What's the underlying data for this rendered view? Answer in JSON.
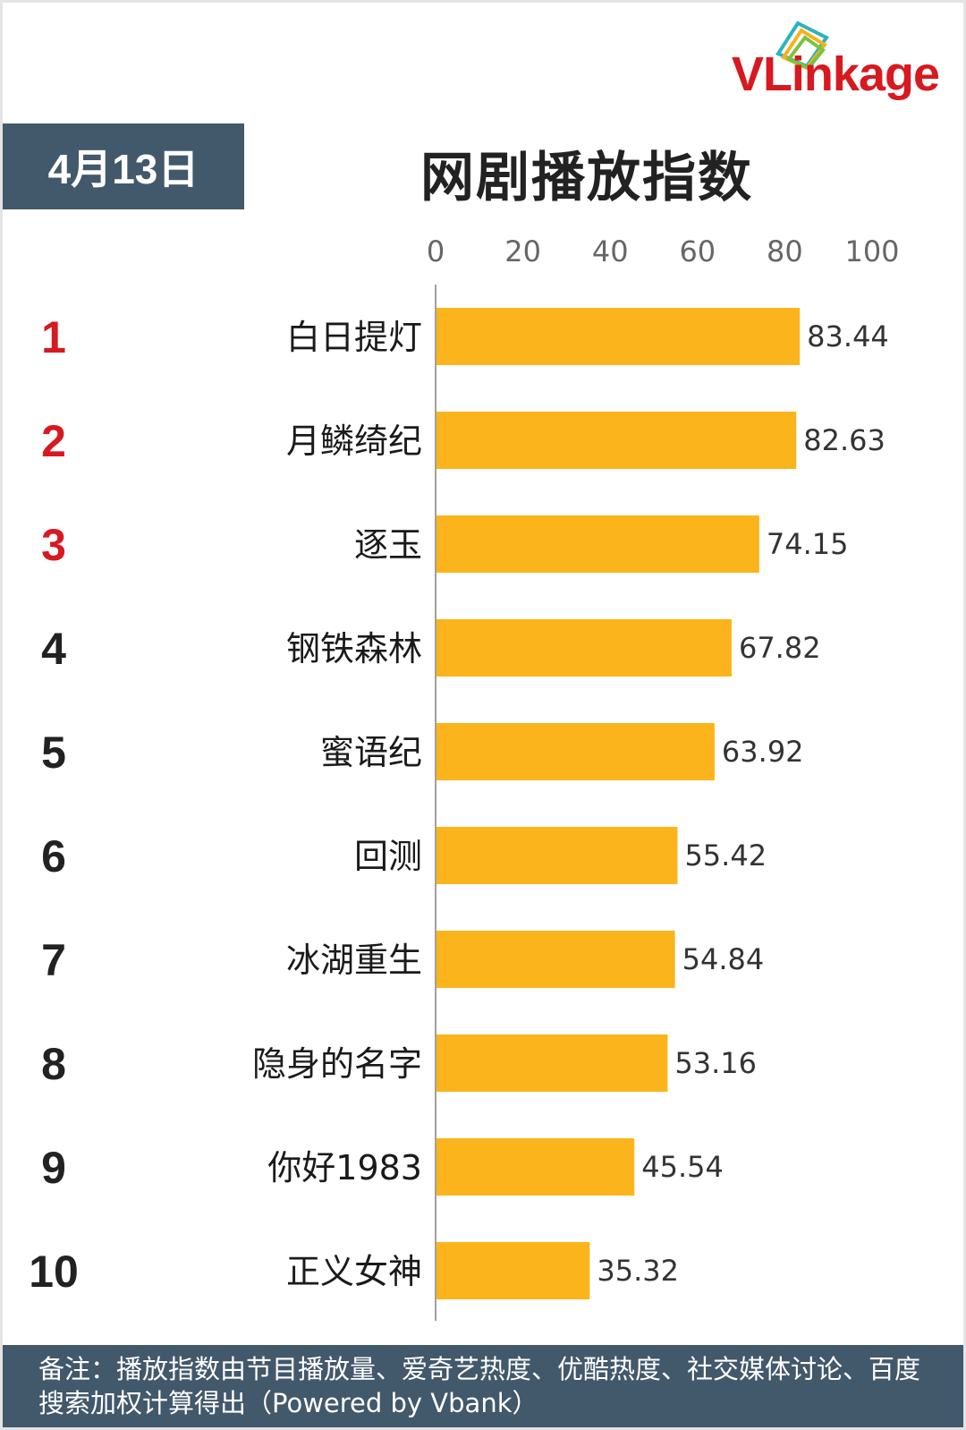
{
  "brand": {
    "logo_text": "VLinkage"
  },
  "date_badge": "4月13日",
  "footnote": "备注：播放指数由节目播放量、爱奇艺热度、优酷热度、社交媒体讨论、百度搜索加权计算得出（Powered by Vbank）",
  "colors": {
    "bar": "#fbb41b",
    "header_bg": "#42586b",
    "rank_top": "#d71920",
    "rank_other": "#222222"
  },
  "chart_data": {
    "type": "bar",
    "orientation": "horizontal",
    "title": "网剧播放指数",
    "xlim": [
      0,
      100
    ],
    "ticks": [
      0,
      20,
      40,
      60,
      80,
      100
    ],
    "axis_position": "top",
    "grid": false,
    "legend": "none",
    "ranks": [
      "1",
      "2",
      "3",
      "4",
      "5",
      "6",
      "7",
      "8",
      "9",
      "10"
    ],
    "categories": [
      "白日提灯",
      "月鳞绮纪",
      "逐玉",
      "钢铁森林",
      "蜜语纪",
      "回测",
      "冰湖重生",
      "隐身的名字",
      "你好1983",
      "正义女神"
    ],
    "values": [
      83.44,
      82.63,
      74.15,
      67.82,
      63.92,
      55.42,
      54.84,
      53.16,
      45.54,
      35.32
    ],
    "value_labels": [
      "83.44",
      "82.63",
      "74.15",
      "67.82",
      "63.92",
      "55.42",
      "54.84",
      "53.16",
      "45.54",
      "35.32"
    ]
  }
}
